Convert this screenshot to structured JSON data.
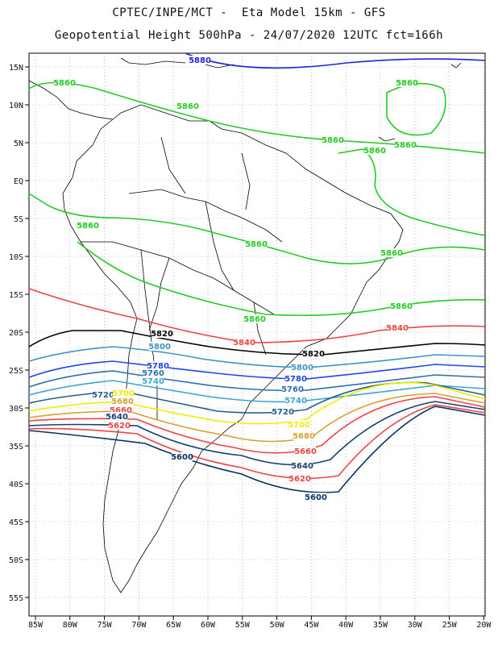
{
  "header": {
    "line1": "CPTEC/INPE/MCT -  Eta Model 15km - GFS",
    "line2": "Geopotential Height 500hPa - 24/07/2020 12UTC fct=166h"
  },
  "map": {
    "lon_ticks": [
      "85W",
      "80W",
      "75W",
      "70W",
      "65W",
      "60W",
      "55W",
      "50W",
      "45W",
      "40W",
      "35W",
      "30W",
      "25W",
      "20W"
    ],
    "lat_ticks": [
      "15N",
      "10N",
      "5N",
      "EQ",
      "5S",
      "10S",
      "15S",
      "20S",
      "25S",
      "30S",
      "35S",
      "40S",
      "45S",
      "50S",
      "55S"
    ],
    "colors": {
      "5880": "#2222dd",
      "5860": "#22cc22",
      "5840": "#ee4444",
      "5820": "#000000",
      "5800": "#3f93c8",
      "5780": "#2244ee",
      "5760": "#2a6fb0",
      "5740": "#3aa6d2",
      "5720": "#235d8c",
      "5700": "#eeee00",
      "5680": "#d8a030",
      "5660": "#ee4444",
      "5640": "#1a3f78",
      "5620": "#ee4444",
      "5600": "#0a3366",
      "coast": "#000000",
      "grid": "#999999"
    },
    "contour_labels": [
      {
        "text": "5880",
        "level": "5880"
      },
      {
        "text": "5860",
        "level": "5860"
      },
      {
        "text": "5860",
        "level": "5860"
      },
      {
        "text": "5860",
        "level": "5860"
      },
      {
        "text": "5860",
        "level": "5860"
      },
      {
        "text": "5860",
        "level": "5860"
      },
      {
        "text": "5860",
        "level": "5860"
      },
      {
        "text": "5860",
        "level": "5860"
      },
      {
        "text": "5860",
        "level": "5860"
      },
      {
        "text": "5860",
        "level": "5860"
      },
      {
        "text": "5860",
        "level": "5860"
      },
      {
        "text": "5860",
        "level": "5860"
      },
      {
        "text": "5840",
        "level": "5840"
      },
      {
        "text": "5840",
        "level": "5840"
      },
      {
        "text": "5820",
        "level": "5820"
      },
      {
        "text": "5820",
        "level": "5820"
      },
      {
        "text": "5800",
        "level": "5800"
      },
      {
        "text": "5800",
        "level": "5800"
      },
      {
        "text": "5780",
        "level": "5780"
      },
      {
        "text": "5780",
        "level": "5780"
      },
      {
        "text": "5760",
        "level": "5760"
      },
      {
        "text": "5760",
        "level": "5760"
      },
      {
        "text": "5740",
        "level": "5740"
      },
      {
        "text": "5740",
        "level": "5740"
      },
      {
        "text": "5720",
        "level": "5720"
      },
      {
        "text": "5720",
        "level": "5720"
      },
      {
        "text": "5700",
        "level": "5700"
      },
      {
        "text": "5700",
        "level": "5700"
      },
      {
        "text": "5680",
        "level": "5680"
      },
      {
        "text": "5680",
        "level": "5680"
      },
      {
        "text": "5660",
        "level": "5660"
      },
      {
        "text": "5660",
        "level": "5660"
      },
      {
        "text": "5640",
        "level": "5640"
      },
      {
        "text": "5640",
        "level": "5640"
      },
      {
        "text": "5620",
        "level": "5620"
      },
      {
        "text": "5620",
        "level": "5620"
      },
      {
        "text": "5600",
        "level": "5600"
      },
      {
        "text": "5600",
        "level": "5600"
      }
    ]
  }
}
